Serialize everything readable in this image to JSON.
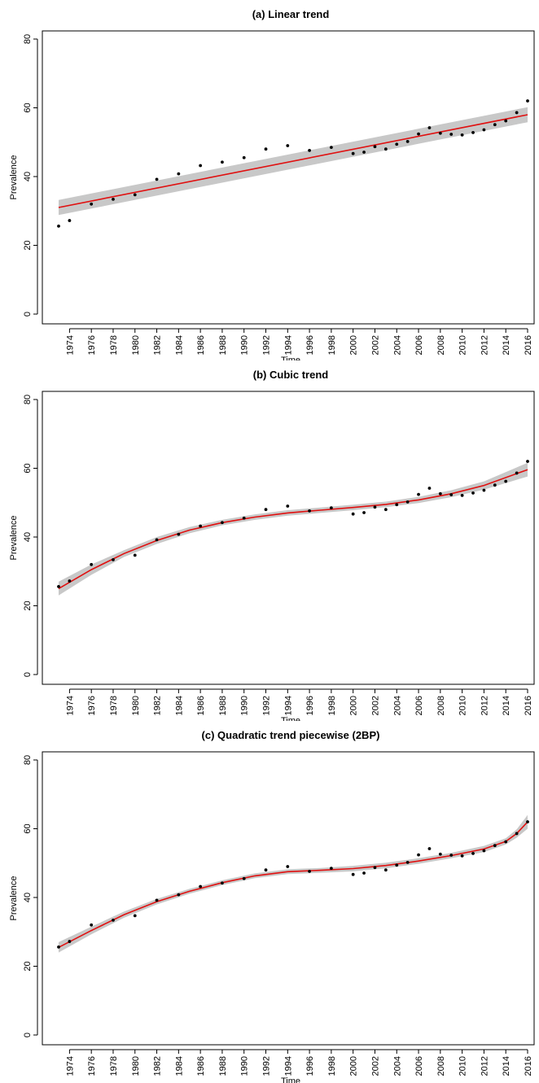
{
  "chart_data": [
    {
      "type": "scatter",
      "title": "(a) Linear trend",
      "xlabel": "Time",
      "ylabel": "Prevalence",
      "ylim": [
        0,
        80
      ],
      "yticks": [
        0,
        20,
        40,
        60,
        80
      ],
      "xlim": [
        1973,
        2016
      ],
      "xticks": [
        1974,
        1976,
        1978,
        1980,
        1982,
        1984,
        1986,
        1988,
        1990,
        1992,
        1994,
        1996,
        1998,
        2000,
        2002,
        2004,
        2006,
        2008,
        2010,
        2012,
        2014,
        2016
      ],
      "grid": false,
      "legend": "none",
      "colors": {
        "points": "#000000",
        "fit": "#e01010",
        "band": "#c8c8c8"
      },
      "points": {
        "x": [
          1973,
          1974,
          1976,
          1978,
          1980,
          1982,
          1984,
          1986,
          1988,
          1990,
          1992,
          1994,
          1996,
          1998,
          2000,
          2001,
          2002,
          2003,
          2004,
          2005,
          2006,
          2007,
          2008,
          2009,
          2010,
          2011,
          2012,
          2013,
          2014,
          2015,
          2016
        ],
        "y": [
          25.6,
          27.2,
          32.0,
          33.4,
          34.7,
          39.2,
          40.8,
          43.2,
          44.2,
          45.5,
          48.0,
          49.0,
          47.6,
          48.5,
          46.7,
          47.1,
          48.7,
          48.0,
          49.4,
          50.2,
          52.4,
          54.2,
          52.6,
          52.3,
          52.1,
          52.8,
          53.6,
          55.1,
          56.2,
          58.6,
          62.0
        ]
      },
      "fit": {
        "x": [
          1973,
          2016
        ],
        "y": [
          31.0,
          58.0
        ],
        "lower": [
          28.8,
          55.8
        ],
        "upper": [
          33.2,
          60.2
        ]
      }
    },
    {
      "type": "scatter",
      "title": "(b) Cubic trend",
      "xlabel": "Time",
      "ylabel": "Prevalence",
      "ylim": [
        0,
        80
      ],
      "yticks": [
        0,
        20,
        40,
        60,
        80
      ],
      "xlim": [
        1973,
        2016
      ],
      "xticks": [
        1974,
        1976,
        1978,
        1980,
        1982,
        1984,
        1986,
        1988,
        1990,
        1992,
        1994,
        1996,
        1998,
        2000,
        2002,
        2004,
        2006,
        2008,
        2010,
        2012,
        2014,
        2016
      ],
      "grid": false,
      "legend": "none",
      "colors": {
        "points": "#000000",
        "fit": "#e01010",
        "band": "#c8c8c8"
      },
      "points": {
        "x": [
          1973,
          1974,
          1976,
          1978,
          1980,
          1982,
          1984,
          1986,
          1988,
          1990,
          1992,
          1994,
          1996,
          1998,
          2000,
          2001,
          2002,
          2003,
          2004,
          2005,
          2006,
          2007,
          2008,
          2009,
          2010,
          2011,
          2012,
          2013,
          2014,
          2015,
          2016
        ],
        "y": [
          25.6,
          27.2,
          32.0,
          33.4,
          34.7,
          39.2,
          40.8,
          43.2,
          44.2,
          45.5,
          48.0,
          49.0,
          47.6,
          48.5,
          46.7,
          47.1,
          48.7,
          48.0,
          49.4,
          50.2,
          52.4,
          54.2,
          52.6,
          52.3,
          52.1,
          52.8,
          53.6,
          55.1,
          56.2,
          58.6,
          62.0
        ]
      },
      "fit": {
        "x": [
          1973,
          1976,
          1979,
          1982,
          1985,
          1988,
          1991,
          1994,
          1997,
          2000,
          2003,
          2006,
          2009,
          2012,
          2016
        ],
        "y": [
          25.0,
          30.5,
          35.2,
          39.0,
          42.0,
          44.2,
          45.8,
          47.0,
          47.8,
          48.6,
          49.5,
          50.8,
          52.6,
          55.0,
          59.6
        ],
        "lower": [
          23.0,
          29.0,
          34.2,
          38.0,
          41.1,
          43.4,
          45.0,
          46.2,
          47.0,
          47.8,
          48.7,
          49.9,
          51.6,
          53.8,
          57.6
        ],
        "upper": [
          27.0,
          32.0,
          36.2,
          40.0,
          42.9,
          45.0,
          46.6,
          47.8,
          48.6,
          49.4,
          50.3,
          51.7,
          53.6,
          56.2,
          61.6
        ]
      }
    },
    {
      "type": "scatter",
      "title": "(c) Quadratic trend piecewise (2BP)",
      "xlabel": "Time",
      "ylabel": "Prevalence",
      "ylim": [
        0,
        80
      ],
      "yticks": [
        0,
        20,
        40,
        60,
        80
      ],
      "xlim": [
        1973,
        2016
      ],
      "xticks": [
        1974,
        1976,
        1978,
        1980,
        1982,
        1984,
        1986,
        1988,
        1990,
        1992,
        1994,
        1996,
        1998,
        2000,
        2002,
        2004,
        2006,
        2008,
        2010,
        2012,
        2014,
        2016
      ],
      "grid": false,
      "legend": "none",
      "colors": {
        "points": "#000000",
        "fit": "#e01010",
        "band": "#c8c8c8"
      },
      "points": {
        "x": [
          1973,
          1974,
          1976,
          1978,
          1980,
          1982,
          1984,
          1986,
          1988,
          1990,
          1992,
          1994,
          1996,
          1998,
          2000,
          2001,
          2002,
          2003,
          2004,
          2005,
          2006,
          2007,
          2008,
          2009,
          2010,
          2011,
          2012,
          2013,
          2014,
          2015,
          2016
        ],
        "y": [
          25.6,
          27.2,
          32.0,
          33.4,
          34.7,
          39.2,
          40.8,
          43.2,
          44.2,
          45.5,
          48.0,
          49.0,
          47.6,
          48.5,
          46.7,
          47.1,
          48.7,
          48.0,
          49.4,
          50.2,
          52.4,
          54.2,
          52.6,
          52.3,
          52.1,
          52.8,
          53.6,
          55.1,
          56.2,
          58.6,
          62.0
        ]
      },
      "fit": {
        "x": [
          1973,
          1976,
          1979,
          1982,
          1985,
          1988,
          1991,
          1994,
          1997,
          2000,
          2003,
          2006,
          2009,
          2012,
          2014,
          2015,
          2016
        ],
        "y": [
          25.5,
          30.4,
          35.0,
          38.8,
          41.8,
          44.3,
          46.3,
          47.5,
          47.9,
          48.4,
          49.3,
          50.6,
          52.2,
          54.1,
          56.3,
          58.6,
          62.0
        ],
        "lower": [
          24.0,
          29.3,
          34.1,
          38.0,
          41.1,
          43.6,
          45.6,
          46.8,
          47.2,
          47.6,
          48.5,
          49.8,
          51.4,
          53.2,
          55.4,
          57.4,
          60.0
        ],
        "upper": [
          27.0,
          31.5,
          35.9,
          39.6,
          42.5,
          45.0,
          47.0,
          48.2,
          48.6,
          49.2,
          50.1,
          51.4,
          53.0,
          55.0,
          57.2,
          59.8,
          64.0
        ]
      }
    }
  ]
}
